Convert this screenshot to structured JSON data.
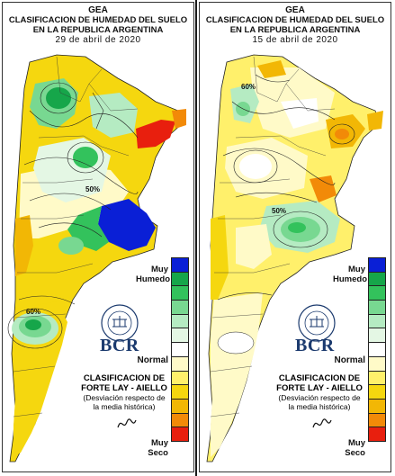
{
  "panels": [
    {
      "id": "left",
      "title_org": "GEA",
      "title_line1": "CLASIFICACION DE HUMEDAD DEL SUELO",
      "title_line2": "EN LA REPUBLICA ARGENTINA",
      "date": "29 de abril de 2020",
      "contour_label": "60%",
      "contour_label_2": "50%"
    },
    {
      "id": "right",
      "title_org": "GEA",
      "title_line1": "CLASIFICACION DE HUMEDAD DEL SUELO",
      "title_line2": "EN LA REPUBLICA ARGENTINA",
      "date": "15 de abril de 2020",
      "contour_label": "60%",
      "contour_label_2": "50%"
    }
  ],
  "legend": {
    "wet_label_1": "Muy",
    "wet_label_2": "Humedo",
    "normal_label": "Normal",
    "dry_label_1": "Muy",
    "dry_label_2": "Seco",
    "classes": [
      {
        "color": "#0a1fd6"
      },
      {
        "color": "#16a64a"
      },
      {
        "color": "#33c25c"
      },
      {
        "color": "#78d891"
      },
      {
        "color": "#b5ebc2"
      },
      {
        "color": "#e4f7e4"
      },
      {
        "color": "#ffffff"
      },
      {
        "color": "#fffac8"
      },
      {
        "color": "#fff06b"
      },
      {
        "color": "#f5d70f"
      },
      {
        "color": "#f2b705"
      },
      {
        "color": "#f28a08"
      },
      {
        "color": "#e81f0e"
      }
    ]
  },
  "classification": {
    "line1": "CLASIFICACION DE",
    "line2": "FORTE LAY - AIELLO",
    "line3": "(Desviación respecto de",
    "line4": "la media histórica)"
  },
  "logo": {
    "text": "BCR",
    "seal_text": "BOLSA DE COMERCIO DE ROSARIO"
  }
}
